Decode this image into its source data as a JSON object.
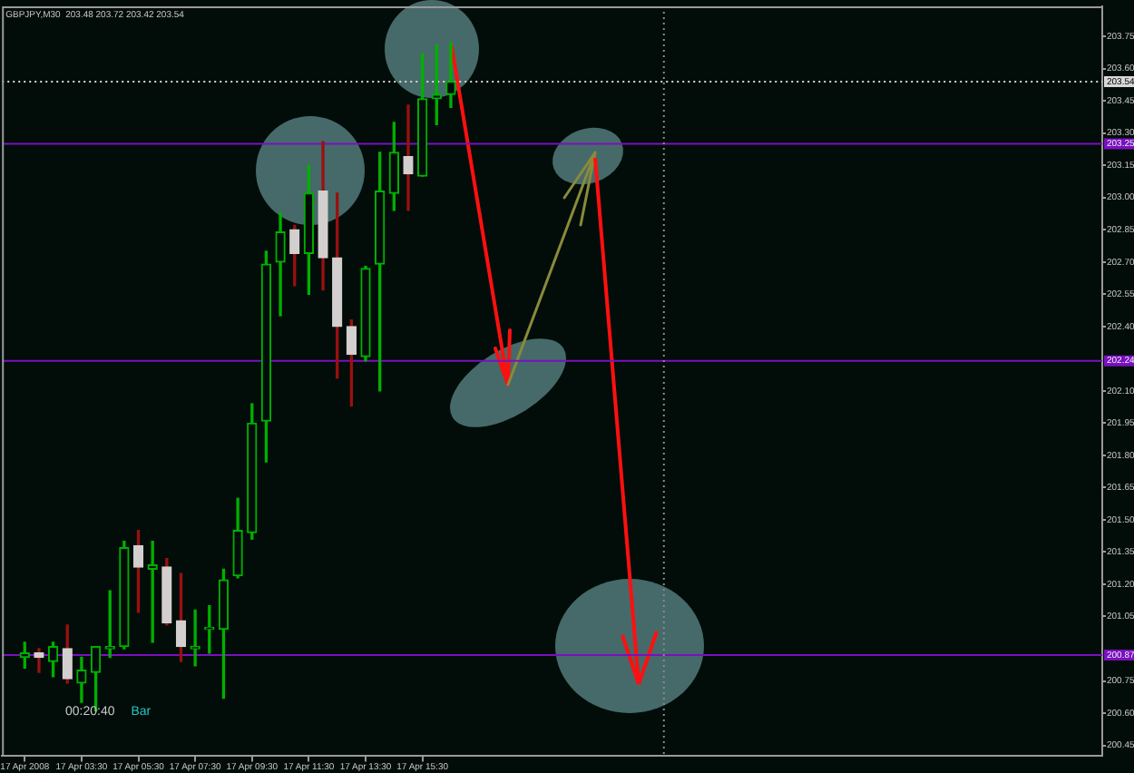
{
  "chart_data": {
    "type": "candlestick",
    "title": "GBPJPY,M30  203.48 203.72 203.42 203.54",
    "x": [
      "2008-04-17T01:30",
      "2008-04-17T02:00",
      "2008-04-17T02:30",
      "2008-04-17T03:00",
      "2008-04-17T03:30",
      "2008-04-17T04:00",
      "2008-04-17T04:30",
      "2008-04-17T05:00",
      "2008-04-17T05:30",
      "2008-04-17T06:00",
      "2008-04-17T06:30",
      "2008-04-17T07:00",
      "2008-04-17T07:30",
      "2008-04-17T08:00",
      "2008-04-17T08:30",
      "2008-04-17T09:00",
      "2008-04-17T09:30",
      "2008-04-17T10:00",
      "2008-04-17T10:30",
      "2008-04-17T11:00",
      "2008-04-17T11:30",
      "2008-04-17T12:00",
      "2008-04-17T12:30",
      "2008-04-17T13:00",
      "2008-04-17T13:30",
      "2008-04-17T14:00",
      "2008-04-17T14:30",
      "2008-04-17T15:00",
      "2008-04-17T15:30",
      "2008-04-17T16:00",
      "2008-04-17T16:30"
    ],
    "ohlc": [
      [
        200.86,
        200.93,
        200.81,
        200.88
      ],
      [
        200.88,
        200.9,
        200.79,
        200.86
      ],
      [
        200.84,
        200.93,
        200.77,
        200.91
      ],
      [
        200.9,
        201.01,
        200.74,
        200.76
      ],
      [
        200.74,
        200.86,
        200.65,
        200.8
      ],
      [
        200.79,
        200.91,
        200.61,
        200.91
      ],
      [
        200.9,
        201.17,
        200.86,
        200.91
      ],
      [
        200.91,
        201.4,
        200.9,
        201.37
      ],
      [
        201.38,
        201.45,
        201.07,
        201.28
      ],
      [
        201.27,
        201.4,
        200.93,
        201.29
      ],
      [
        201.28,
        201.32,
        201.01,
        201.02
      ],
      [
        201.03,
        201.25,
        200.84,
        200.91
      ],
      [
        200.9,
        201.08,
        200.82,
        200.91
      ],
      [
        200.99,
        201.1,
        200.88,
        201.0
      ],
      [
        200.99,
        201.27,
        200.67,
        201.22
      ],
      [
        201.24,
        201.6,
        201.23,
        201.45
      ],
      [
        201.44,
        202.04,
        201.41,
        201.95
      ],
      [
        201.96,
        202.75,
        201.77,
        202.69
      ],
      [
        202.7,
        202.93,
        202.45,
        202.84
      ],
      [
        202.85,
        202.87,
        202.59,
        202.74
      ],
      [
        202.74,
        203.15,
        202.55,
        203.02
      ],
      [
        203.03,
        203.26,
        202.57,
        202.72
      ],
      [
        202.72,
        203.02,
        202.16,
        202.4
      ],
      [
        202.4,
        202.43,
        202.03,
        202.27
      ],
      [
        202.26,
        202.68,
        202.24,
        202.67
      ],
      [
        202.69,
        203.21,
        202.1,
        203.03
      ],
      [
        203.02,
        203.35,
        202.94,
        203.21
      ],
      [
        203.19,
        203.43,
        202.94,
        203.11
      ],
      [
        203.1,
        203.67,
        203.1,
        203.46
      ],
      [
        203.46,
        203.71,
        203.34,
        203.48
      ],
      [
        203.48,
        203.72,
        203.42,
        203.54
      ]
    ],
    "colors": [
      "#00b000",
      "#d4cfcf",
      "#00b000",
      "#d4cfcf",
      "#00b000",
      "#00b000",
      "#00b000",
      "#00b000",
      "#d4cfcf",
      "#00b000",
      "#d4cfcf",
      "#d4cfcf",
      "#00b000",
      "#00b000",
      "#00b000",
      "#00b000",
      "#00b000",
      "#00b000",
      "#00b000",
      "#d4cfcf",
      "#00b000",
      "#d4cfcf",
      "#d4cfcf",
      "#d4cfcf",
      "#00b000",
      "#00b000",
      "#00b000",
      "#d4cfcf",
      "#00b000",
      "#00b000",
      "#00b000"
    ],
    "xlim": [
      "2008-04-17T00:42",
      "2008-04-18T15:26"
    ],
    "xticks": [
      {
        "value": "2008-04-17T01:30",
        "label": "17 Apr 2008"
      },
      {
        "value": "2008-04-17T03:30",
        "label": "17 Apr 03:30"
      },
      {
        "value": "2008-04-17T05:30",
        "label": "17 Apr 05:30"
      },
      {
        "value": "2008-04-17T07:30",
        "label": "17 Apr 07:30"
      },
      {
        "value": "2008-04-17T09:30",
        "label": "17 Apr 09:30"
      },
      {
        "value": "2008-04-17T11:30",
        "label": "17 Apr 11:30"
      },
      {
        "value": "2008-04-17T13:30",
        "label": "17 Apr 13:30"
      },
      {
        "value": "2008-04-17T15:30",
        "label": "17 Apr 15:30"
      }
    ],
    "ylim": [
      200.4,
      203.89
    ],
    "yticks": [
      200.45,
      {
        "value": 200.6,
        "label": "200.60"
      },
      200.75,
      201.05,
      {
        "value": 201.2,
        "label": "201.20"
      },
      201.35,
      {
        "value": 201.5,
        "label": "201.50"
      },
      201.65,
      {
        "value": 201.8,
        "label": "201.80"
      },
      201.95,
      {
        "value": 202.1,
        "label": "202.10"
      },
      {
        "value": 202.4,
        "label": "202.40"
      },
      202.55,
      {
        "value": 202.7,
        "label": "202.70"
      },
      202.85,
      {
        "value": 203.0,
        "label": "203.00"
      },
      203.15,
      {
        "value": 203.3,
        "label": "203.30"
      },
      203.45,
      {
        "value": 203.6,
        "label": "203.60"
      },
      203.75
    ],
    "ref_lines": [
      {
        "axis": "y",
        "value": 203.54,
        "label": "203.54",
        "color": "#d8d8d8",
        "line_style": "dotted"
      },
      {
        "axis": "y",
        "value": 203.25,
        "label": "203.25",
        "color": "#7a10c0"
      },
      {
        "axis": "y",
        "value": 202.24,
        "label": "202.24",
        "color": "#7a10c0"
      },
      {
        "axis": "y",
        "value": 200.87,
        "label": "200.87",
        "color": "#7a10c0"
      },
      {
        "axis": "x",
        "value": "2008-04-18T00:00",
        "color": "#8a8a8a",
        "line_style": "dotted"
      }
    ],
    "annotations": [
      "00:20:40",
      "Bar"
    ],
    "grid": false,
    "legend": false
  }
}
